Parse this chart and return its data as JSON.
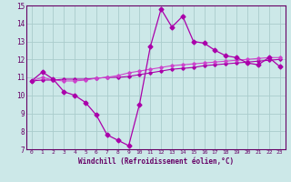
{
  "x": [
    0,
    1,
    2,
    3,
    4,
    5,
    6,
    7,
    8,
    9,
    10,
    11,
    12,
    13,
    14,
    15,
    16,
    17,
    18,
    19,
    20,
    21,
    22,
    23
  ],
  "line1": [
    10.8,
    11.3,
    10.9,
    10.2,
    10.0,
    9.6,
    8.9,
    7.8,
    7.5,
    7.2,
    9.5,
    12.7,
    14.8,
    13.8,
    14.4,
    13.0,
    12.9,
    12.5,
    12.2,
    12.1,
    11.8,
    11.7,
    12.1,
    11.6
  ],
  "line2": [
    10.8,
    11.0,
    10.85,
    10.8,
    10.8,
    10.85,
    10.95,
    11.0,
    11.1,
    11.25,
    11.35,
    11.45,
    11.55,
    11.65,
    11.7,
    11.75,
    11.8,
    11.85,
    11.9,
    11.95,
    12.0,
    12.05,
    12.1,
    12.1
  ],
  "line3": [
    10.8,
    10.85,
    10.85,
    10.9,
    10.9,
    10.9,
    10.95,
    11.0,
    11.0,
    11.05,
    11.15,
    11.25,
    11.35,
    11.45,
    11.5,
    11.55,
    11.65,
    11.7,
    11.75,
    11.8,
    11.85,
    11.9,
    11.95,
    12.0
  ],
  "line_color": "#aa00aa",
  "line_color2": "#cc44cc",
  "background_color": "#cce8e8",
  "grid_color": "#aacccc",
  "xlabel": "Windchill (Refroidissement éolien,°C)",
  "ylim": [
    7,
    15
  ],
  "xlim": [
    -0.5,
    23.5
  ],
  "yticks": [
    7,
    8,
    9,
    10,
    11,
    12,
    13,
    14,
    15
  ],
  "xticks": [
    0,
    1,
    2,
    3,
    4,
    5,
    6,
    7,
    8,
    9,
    10,
    11,
    12,
    13,
    14,
    15,
    16,
    17,
    18,
    19,
    20,
    21,
    22,
    23
  ]
}
